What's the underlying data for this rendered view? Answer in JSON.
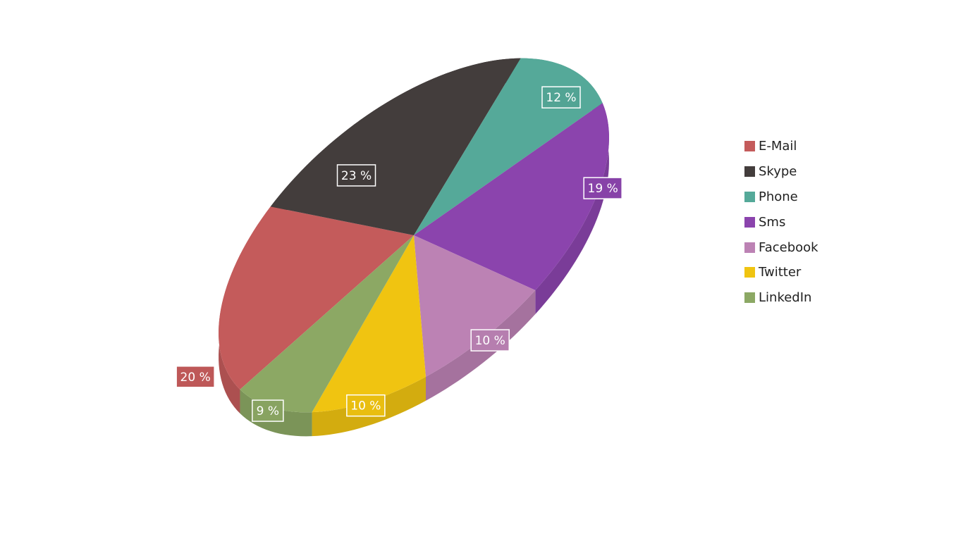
{
  "chart_data": {
    "type": "pie",
    "style": "3d-tilted-pie",
    "title": "",
    "legend_position": "right",
    "slices": [
      {
        "name": "E-Mail",
        "percent": 20,
        "label": "20 %",
        "color": "#c45b5b"
      },
      {
        "name": "Skype",
        "percent": 23,
        "label": "23 %",
        "color": "#433d3c"
      },
      {
        "name": "Phone",
        "percent": 12,
        "label": "12 %",
        "color": "#55a999"
      },
      {
        "name": "Sms",
        "percent": 19,
        "label": "19 %",
        "color": "#8b44ad"
      },
      {
        "name": "Facebook",
        "percent": 10,
        "label": "10 %",
        "color": "#bc82b4"
      },
      {
        "name": "Twitter",
        "percent": 10,
        "label": "10 %",
        "color": "#f0c411"
      },
      {
        "name": "LinkedIn",
        "percent": 9,
        "label": "9 %",
        "color": "#8ca864"
      }
    ]
  }
}
